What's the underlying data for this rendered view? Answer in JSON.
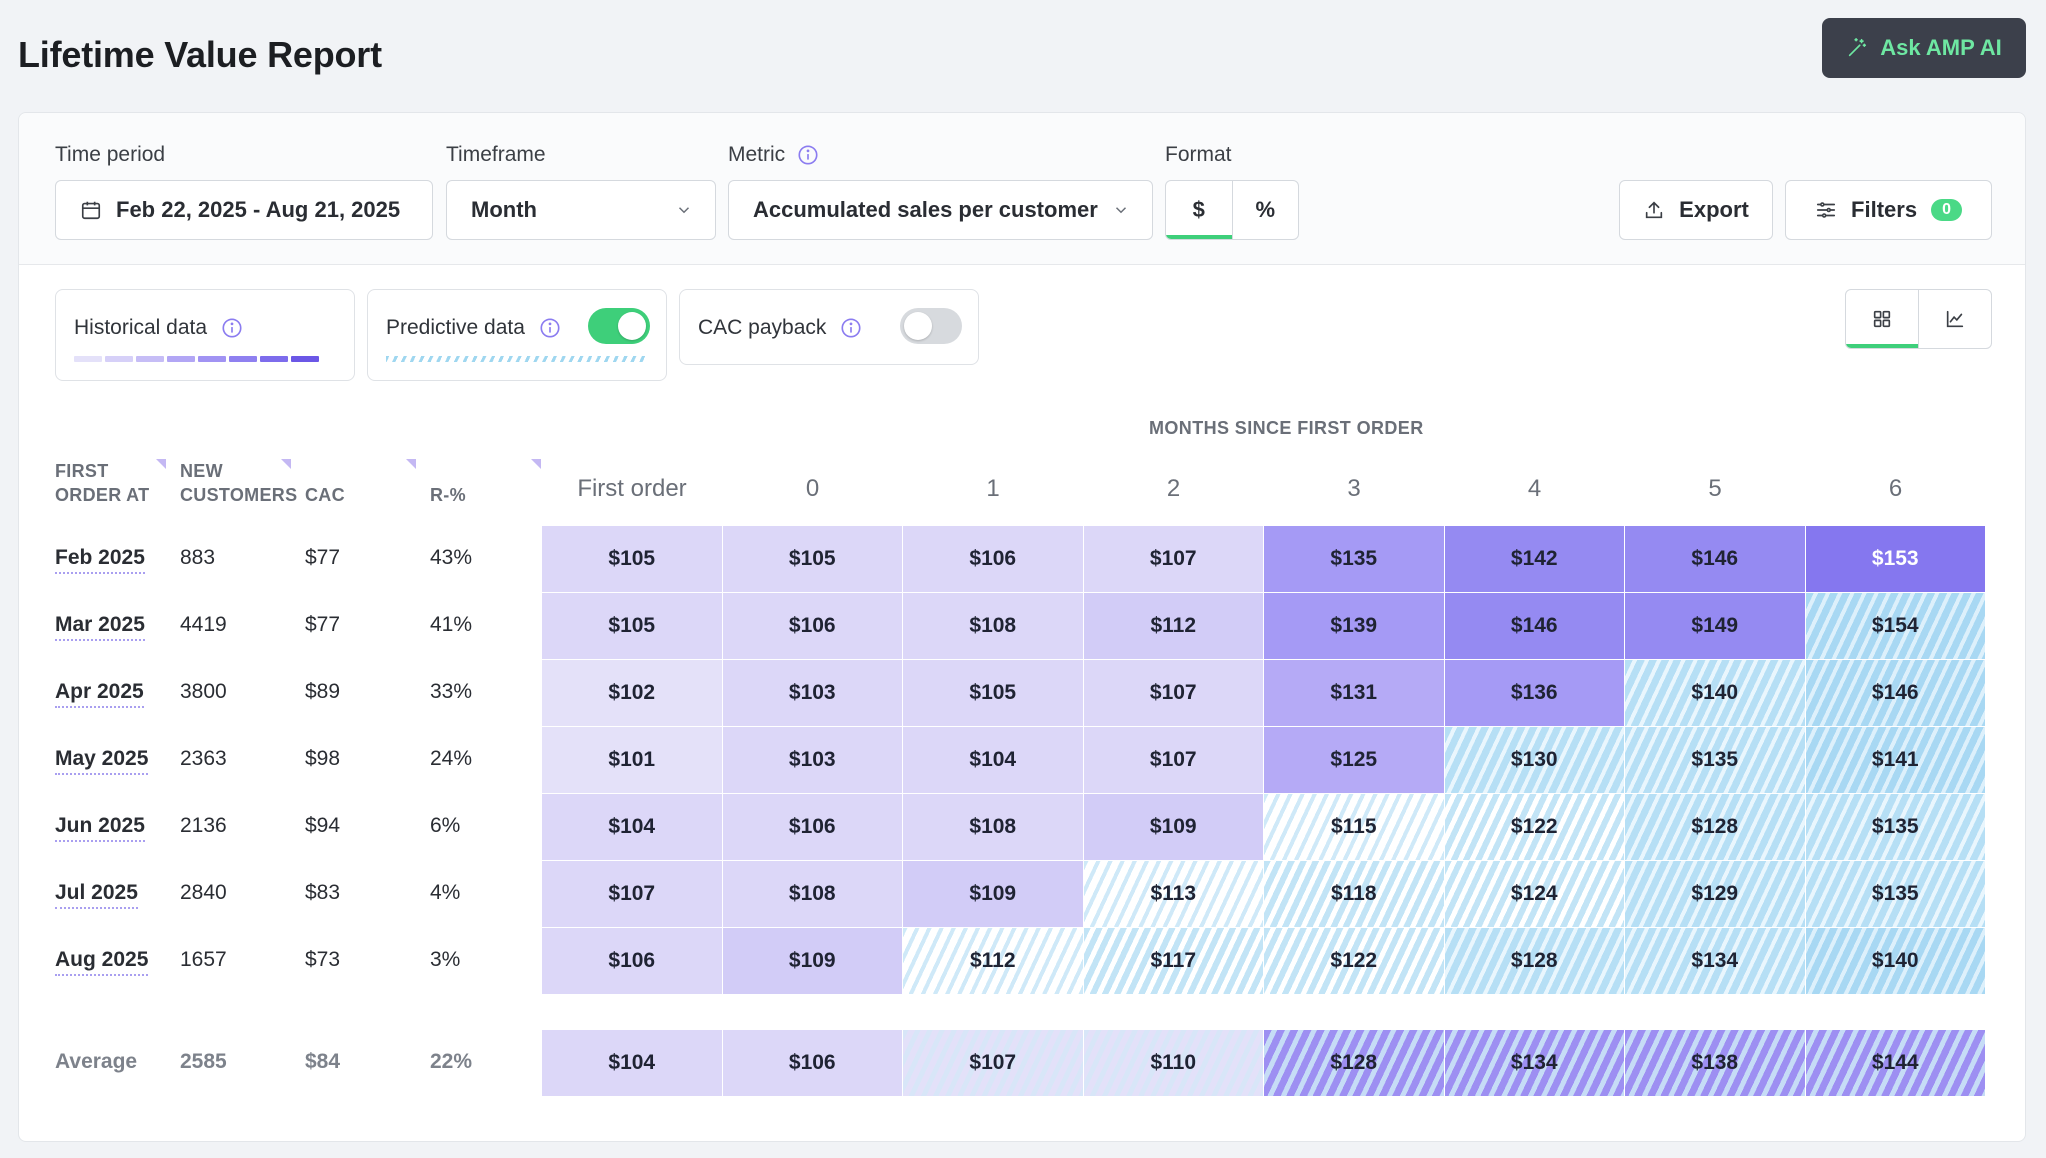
{
  "header": {
    "title": "Lifetime Value Report",
    "ask_button": "Ask AMP AI"
  },
  "toolbar": {
    "time_period_label": "Time period",
    "time_period_value": "Feb 22, 2025 - Aug 21, 2025",
    "timeframe_label": "Timeframe",
    "timeframe_value": "Month",
    "metric_label": "Metric",
    "metric_value": "Accumulated sales per customer",
    "format_label": "Format",
    "format_options": [
      "$",
      "%"
    ],
    "format_selected": "$",
    "export_label": "Export",
    "filters_label": "Filters",
    "filters_count": "0"
  },
  "toggles": {
    "historical_label": "Historical data",
    "predictive_label": "Predictive data",
    "predictive_on": true,
    "cac_payback_label": "CAC payback",
    "cac_payback_on": false,
    "historical_legend_colors": [
      "#e4e1f9",
      "#d6d0f8",
      "#c6bdf6",
      "#b2a6f5",
      "#a193f3",
      "#8f80f0",
      "#7d6cec",
      "#6b57e6"
    ]
  },
  "view": {
    "selected": "grid",
    "options": [
      "grid-icon",
      "line-chart-icon"
    ]
  },
  "table": {
    "months_title": "MONTHS SINCE FIRST ORDER",
    "col_first_order_at": "FIRST\nORDER AT",
    "col_new_customers": "NEW\nCUSTOMERS",
    "col_cac": "CAC",
    "col_r_pct": "R-%",
    "month_headers": [
      "First order",
      "0",
      "1",
      "2",
      "3",
      "4",
      "5",
      "6"
    ],
    "rows": [
      {
        "cohort": "Feb 2025",
        "new_customers": "883",
        "cac": "$77",
        "r_pct": "43%",
        "cells": [
          "$105",
          "$105",
          "$106",
          "$107",
          "$135",
          "$142",
          "$146",
          "$153"
        ],
        "styles": [
          "c2",
          "c2",
          "c2",
          "c2",
          "c5",
          "c6",
          "c6",
          "c7"
        ]
      },
      {
        "cohort": "Mar 2025",
        "new_customers": "4419",
        "cac": "$77",
        "r_pct": "41%",
        "cells": [
          "$105",
          "$106",
          "$108",
          "$112",
          "$139",
          "$146",
          "$149",
          "$154"
        ],
        "styles": [
          "c2",
          "c2",
          "c2",
          "c3",
          "c5",
          "c6",
          "c6",
          "p4"
        ]
      },
      {
        "cohort": "Apr 2025",
        "new_customers": "3800",
        "cac": "$89",
        "r_pct": "33%",
        "cells": [
          "$102",
          "$103",
          "$105",
          "$107",
          "$131",
          "$136",
          "$140",
          "$146"
        ],
        "styles": [
          "c1",
          "c2",
          "c2",
          "c2",
          "c4",
          "c5",
          "p3",
          "p4"
        ]
      },
      {
        "cohort": "May 2025",
        "new_customers": "2363",
        "cac": "$98",
        "r_pct": "24%",
        "cells": [
          "$101",
          "$103",
          "$104",
          "$107",
          "$125",
          "$130",
          "$135",
          "$141"
        ],
        "styles": [
          "c1",
          "c2",
          "c2",
          "c2",
          "c4",
          "p3",
          "p3",
          "p4"
        ]
      },
      {
        "cohort": "Jun 2025",
        "new_customers": "2136",
        "cac": "$94",
        "r_pct": "6%",
        "cells": [
          "$104",
          "$106",
          "$108",
          "$109",
          "$115",
          "$122",
          "$128",
          "$135"
        ],
        "styles": [
          "c2",
          "c2",
          "c2",
          "c3",
          "p1",
          "p2",
          "p3",
          "p3"
        ]
      },
      {
        "cohort": "Jul 2025",
        "new_customers": "2840",
        "cac": "$83",
        "r_pct": "4%",
        "cells": [
          "$107",
          "$108",
          "$109",
          "$113",
          "$118",
          "$124",
          "$129",
          "$135"
        ],
        "styles": [
          "c2",
          "c2",
          "c3",
          "p1",
          "p2",
          "p2",
          "p3",
          "p3"
        ]
      },
      {
        "cohort": "Aug 2025",
        "new_customers": "1657",
        "cac": "$73",
        "r_pct": "3%",
        "cells": [
          "$106",
          "$109",
          "$112",
          "$117",
          "$122",
          "$128",
          "$134",
          "$140"
        ],
        "styles": [
          "c2",
          "c3",
          "p1",
          "p2",
          "p2",
          "p3",
          "p3",
          "p4"
        ]
      }
    ],
    "average": {
      "label": "Average",
      "new_customers": "2585",
      "cac": "$84",
      "r_pct": "22%",
      "cells": [
        "$104",
        "$106",
        "$107",
        "$110",
        "$128",
        "$134",
        "$138",
        "$144"
      ],
      "styles": [
        "c2",
        "c2",
        "mixL",
        "mixL",
        "mixS",
        "mixS",
        "mixS",
        "mixS"
      ]
    }
  }
}
